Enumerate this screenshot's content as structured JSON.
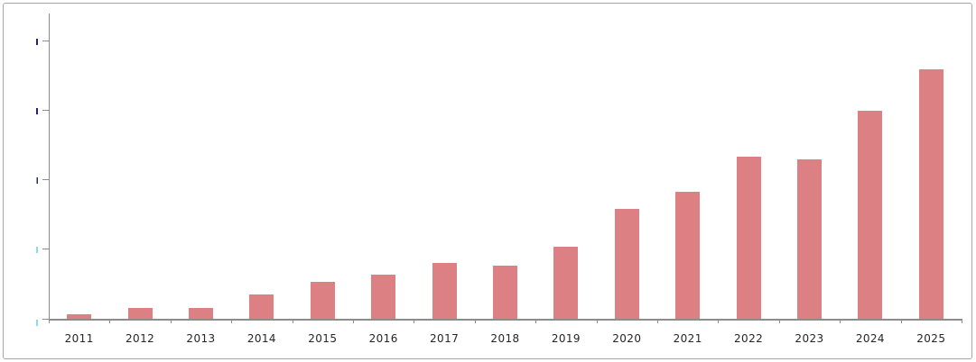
{
  "window": {
    "background": "#ffffff",
    "border_color": "#a6a6a6"
  },
  "chart_data": {
    "type": "bar",
    "title": "",
    "xlabel": "",
    "ylabel": "",
    "categories": [
      "2011",
      "2012",
      "2013",
      "2014",
      "2015",
      "2016",
      "2017",
      "2018",
      "2019",
      "2020",
      "2021",
      "2022",
      "2023",
      "2024",
      "2025"
    ],
    "values": [
      0.07,
      0.16,
      0.16,
      0.35,
      0.53,
      0.64,
      0.81,
      0.76,
      1.04,
      1.58,
      1.83,
      2.33,
      2.3,
      3.0,
      3.6
    ],
    "value_units": "y-axis gridline intervals (numeric tick labels are cropped off the left edge of the image)",
    "ylim": [
      0,
      4.4
    ],
    "y_tick_interval": 1,
    "y_tick_count": 5,
    "grid": false,
    "legend": false,
    "bar_color": "#dc8084",
    "axis_color": "#8c8c8c",
    "tick_label_color": "#262626"
  },
  "y_axis": {
    "labels_cropped": true,
    "visible_label_fragments": [
      {
        "color": "#23237e",
        "color2": null
      },
      {
        "color": "#23237e",
        "color2": null
      },
      {
        "color": "#3fb9e6",
        "color2": "#6b1420"
      },
      {
        "color": "#8fd9f0",
        "color2": null
      },
      {
        "color": "#8fd9f0",
        "color2": null
      }
    ]
  }
}
